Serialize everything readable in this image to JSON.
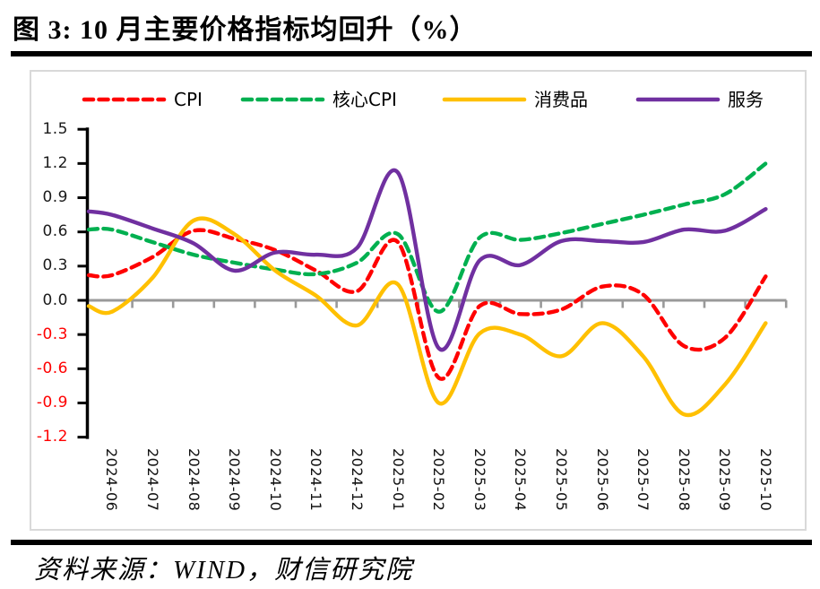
{
  "header": {
    "title": "图 3: 10 月主要价格指标均回升（%）"
  },
  "footer": {
    "source_note": "资料来源：WIND，财信研究院"
  },
  "legend": {
    "items": [
      {
        "label": "CPI"
      },
      {
        "label": "核心CPI"
      },
      {
        "label": "消费品"
      },
      {
        "label": "服务"
      }
    ]
  },
  "colors": {
    "cpi": "#ff0000",
    "core_cpi": "#00b050",
    "consumer_goods": "#ffc000",
    "services": "#7030a0",
    "zero_axis": "#999999",
    "y_axis": "#000000",
    "negative_tick_label": "#ff0000",
    "chart_border": "#d9d9d9",
    "rule": "#000000"
  },
  "chart_data": {
    "type": "line",
    "title": "图 3: 10 月主要价格指标均回升（%）",
    "unit": "%",
    "categories": [
      "2024-06",
      "2024-07",
      "2024-08",
      "2024-09",
      "2024-10",
      "2024-11",
      "2024-12",
      "2025-01",
      "2025-02",
      "2025-03",
      "2025-04",
      "2025-05",
      "2025-06",
      "2025-07",
      "2025-08",
      "2025-09",
      "2025-10"
    ],
    "series": [
      {
        "name": "CPI",
        "color": "#ff0000",
        "dashed": true,
        "entry": 0.22,
        "values": [
          0.22,
          0.38,
          0.61,
          0.54,
          0.44,
          0.26,
          0.08,
          0.51,
          -0.68,
          -0.05,
          -0.12,
          -0.08,
          0.12,
          0.05,
          -0.4,
          -0.33,
          0.21
        ]
      },
      {
        "name": "核心CPI",
        "color": "#00b050",
        "dashed": true,
        "entry": 0.62,
        "values": [
          0.62,
          0.51,
          0.4,
          0.33,
          0.27,
          0.23,
          0.33,
          0.58,
          -0.1,
          0.55,
          0.53,
          0.59,
          0.67,
          0.75,
          0.84,
          0.93,
          1.2
        ]
      },
      {
        "name": "消费品",
        "color": "#ffc000",
        "dashed": false,
        "entry": -0.05,
        "values": [
          -0.1,
          0.2,
          0.7,
          0.58,
          0.26,
          0.04,
          -0.22,
          0.14,
          -0.9,
          -0.29,
          -0.3,
          -0.49,
          -0.2,
          -0.49,
          -1.0,
          -0.74,
          -0.2
        ]
      },
      {
        "name": "服务",
        "color": "#7030a0",
        "dashed": false,
        "entry": 0.78,
        "values": [
          0.75,
          0.63,
          0.5,
          0.26,
          0.42,
          0.4,
          0.46,
          1.12,
          -0.42,
          0.35,
          0.31,
          0.52,
          0.52,
          0.51,
          0.62,
          0.61,
          0.8
        ]
      }
    ],
    "y_ticks": [
      1.5,
      1.2,
      0.9,
      0.6,
      0.3,
      0.0,
      -0.3,
      -0.6,
      -0.9,
      -1.2
    ],
    "ylim": [
      -1.2,
      1.5
    ],
    "grid": false,
    "legend_position": "top"
  }
}
